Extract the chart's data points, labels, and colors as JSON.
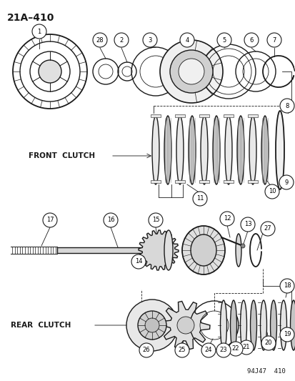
{
  "title": "21A–410",
  "part_number": "94J47  410",
  "bg_color": "#ffffff",
  "line_color": "#1a1a1a",
  "labels": {
    "front_clutch": "FRONT  CLUTCH",
    "rear_clutch": "REAR  CLUTCH"
  },
  "figsize": [
    4.14,
    5.33
  ],
  "dpi": 100
}
